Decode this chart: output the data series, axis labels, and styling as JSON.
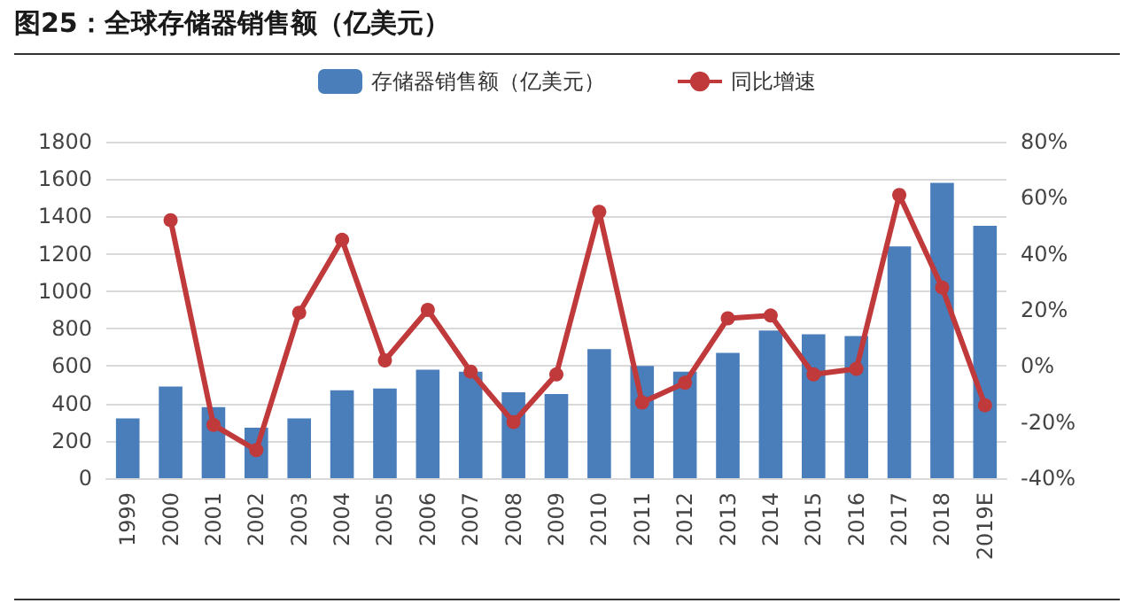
{
  "chart_data": {
    "type": "bar",
    "title": "图25：全球存储器销售额（亿美元）",
    "categories": [
      "1999",
      "2000",
      "2001",
      "2002",
      "2003",
      "2004",
      "2005",
      "2006",
      "2007",
      "2008",
      "2009",
      "2010",
      "2011",
      "2012",
      "2013",
      "2014",
      "2015",
      "2016",
      "2017",
      "2018",
      "2019E"
    ],
    "series": [
      {
        "name": "存储器销售额（亿美元）",
        "color": "#4a7ebb",
        "values": [
          320,
          490,
          380,
          270,
          320,
          470,
          480,
          580,
          570,
          460,
          450,
          690,
          600,
          570,
          670,
          790,
          770,
          760,
          1240,
          1580,
          1350
        ]
      },
      {
        "name": "同比增速",
        "type": "line",
        "axis": "y2",
        "color": "#c0393b",
        "marker": "circle",
        "values": [
          null,
          52,
          -21,
          -30,
          19,
          45,
          2,
          20,
          -2,
          -20,
          -3,
          55,
          -13,
          -6,
          17,
          18,
          -3,
          -1,
          61,
          28,
          -14
        ]
      }
    ],
    "ylim": [
      0,
      1800
    ],
    "yticks": [
      0,
      200,
      400,
      600,
      800,
      1000,
      1200,
      1400,
      1600,
      1800
    ],
    "y2lim": [
      -40,
      80
    ],
    "y2ticks": [
      {
        "value": -40,
        "label": "-40%"
      },
      {
        "value": -20,
        "label": "-20%"
      },
      {
        "value": 0,
        "label": "0%"
      },
      {
        "value": 20,
        "label": "20%"
      },
      {
        "value": 40,
        "label": "40%"
      },
      {
        "value": 60,
        "label": "60%"
      },
      {
        "value": 80,
        "label": "80%"
      }
    ],
    "grid": "y",
    "legend": "top"
  }
}
